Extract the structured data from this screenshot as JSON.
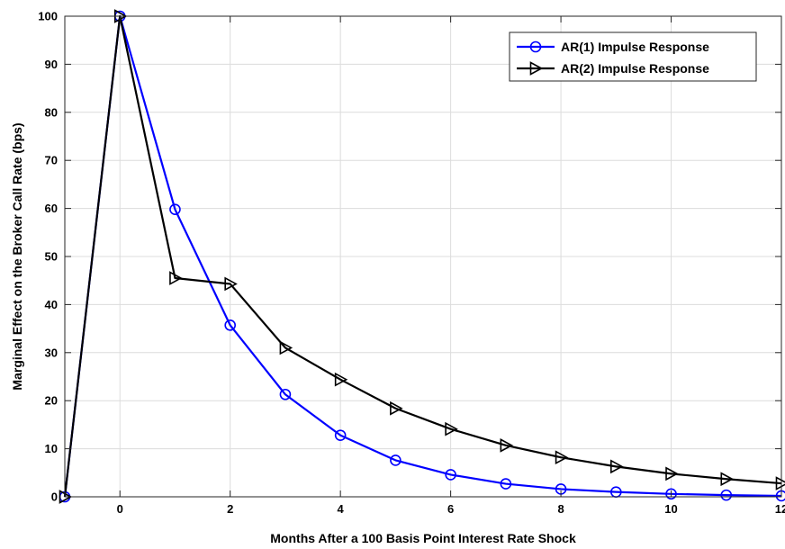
{
  "chart_data": {
    "type": "line",
    "title": "",
    "xlabel": "Months After a 100 Basis Point Interest Rate Shock",
    "ylabel": "Marginal Effect on the Broker Call Rate (bps)",
    "xlim": [
      -1,
      12
    ],
    "ylim": [
      0,
      100
    ],
    "xticks": [
      0,
      2,
      4,
      6,
      8,
      10,
      12
    ],
    "yticks": [
      0,
      10,
      20,
      30,
      40,
      50,
      60,
      70,
      80,
      90,
      100
    ],
    "grid": true,
    "legend_position": "top-right",
    "x": [
      -1,
      0,
      1,
      2,
      3,
      4,
      5,
      6,
      7,
      8,
      9,
      10,
      11,
      12
    ],
    "series": [
      {
        "name": "AR(1) Impulse Response",
        "color": "#0000ff",
        "marker": "circle",
        "values": [
          0,
          100,
          59.8,
          35.7,
          21.3,
          12.8,
          7.6,
          4.6,
          2.7,
          1.6,
          1.0,
          0.6,
          0.35,
          0.2
        ]
      },
      {
        "name": "AR(2) Impulse Response",
        "color": "#000000",
        "marker": "triangle-right",
        "values": [
          0,
          100,
          45.5,
          44.3,
          31.0,
          24.4,
          18.4,
          14.1,
          10.7,
          8.2,
          6.3,
          4.8,
          3.7,
          2.8
        ]
      }
    ]
  }
}
